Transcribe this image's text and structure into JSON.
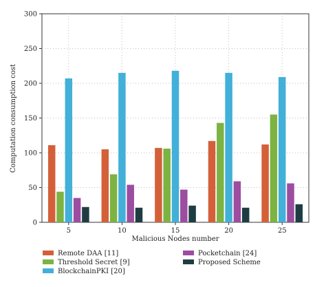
{
  "chart_data": {
    "type": "bar",
    "xlabel": "Malicious Nodes number",
    "ylabel": "Computation consumption cost",
    "ylim": [
      0,
      300
    ],
    "yticks": [
      0,
      50,
      100,
      150,
      200,
      250,
      300
    ],
    "grid": "dotted",
    "legend_placement": "bottom",
    "categories": [
      "5",
      "10",
      "15",
      "20",
      "25"
    ],
    "series": [
      {
        "name": "Remote DAA [11]",
        "color": "#d4603a",
        "values": [
          111,
          105,
          107,
          117,
          112
        ]
      },
      {
        "name": "Threshold Secret [9]",
        "color": "#7cb342",
        "values": [
          44,
          69,
          106,
          143,
          155
        ]
      },
      {
        "name": "BlockchainPKI [20]",
        "color": "#42b0d8",
        "values": [
          207,
          215,
          218,
          215,
          209
        ]
      },
      {
        "name": "Pocketchain [24]",
        "color": "#9c4da0",
        "values": [
          35,
          54,
          47,
          59,
          56
        ]
      },
      {
        "name": "Proposed Scheme",
        "color": "#1e3d43",
        "values": [
          22,
          21,
          24,
          21,
          26
        ]
      }
    ]
  }
}
